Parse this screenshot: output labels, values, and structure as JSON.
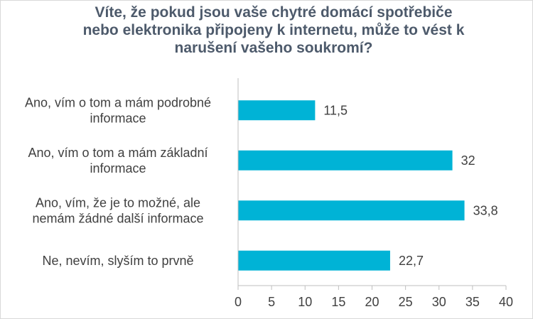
{
  "chart_data": {
    "type": "bar",
    "orientation": "horizontal",
    "title_lines": [
      "Víte, že pokud jsou vaše chytré domácí spotřebiče",
      "nebo elektronika připojeny k internetu, může to vést k",
      "narušení vašeho soukromí?"
    ],
    "categories": [
      [
        "Ano, vím o tom a mám podrobné",
        "informace"
      ],
      [
        "Ano, vím o tom a mám základní",
        "informace"
      ],
      [
        "Ano, vím, že je to možné, ale",
        "nemám žádné další informace"
      ],
      [
        "Ne, nevím, slyším to prvně"
      ]
    ],
    "values": [
      11.5,
      32,
      33.8,
      22.7
    ],
    "value_labels": [
      "11,5",
      "32",
      "33,8",
      "22,7"
    ],
    "xlim": [
      0,
      40
    ],
    "xticks": [
      0,
      5,
      10,
      15,
      20,
      25,
      30,
      35,
      40
    ],
    "grid": false,
    "legend": "none",
    "bar_color": "#00b3d6"
  }
}
